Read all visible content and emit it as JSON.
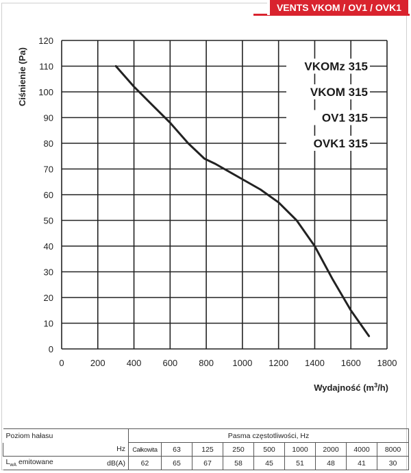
{
  "brand": "VENTS VKOM / OV1 / OVK1",
  "models": [
    "VKOMz 315",
    "VKOM 315",
    "OV1 315",
    "OVK1 315"
  ],
  "chart_data": {
    "type": "line",
    "ylabel": "Ciśnienie (Pa)",
    "xlabel_main": "Wydajność (m",
    "xlabel_sup": "3",
    "xlabel_end": "/h)",
    "xlim": [
      0,
      1800
    ],
    "ylim": [
      0,
      120
    ],
    "xticks": [
      0,
      200,
      400,
      600,
      800,
      1000,
      1200,
      1400,
      1600,
      1800
    ],
    "yticks": [
      0,
      10,
      20,
      30,
      40,
      50,
      60,
      70,
      80,
      90,
      100,
      110,
      120
    ],
    "grid": true,
    "series": [
      {
        "x": [
          300,
          400,
          500,
          600,
          700,
          790,
          850,
          1000,
          1100,
          1200,
          1300,
          1400,
          1500,
          1600,
          1700
        ],
        "y": [
          110,
          102,
          95,
          88,
          80,
          74,
          72,
          66,
          62,
          57,
          50,
          40,
          27,
          15,
          5
        ]
      }
    ]
  },
  "noise": {
    "title": "Poziom hałasu",
    "band_title": "Pasma częstotliwości, Hz",
    "hz_label": "Hz",
    "total_label": "Całkowita",
    "freqs": [
      "63",
      "125",
      "250",
      "500",
      "1000",
      "2000",
      "4000",
      "8000"
    ],
    "row_label_main": "L",
    "row_label_sub": "wA",
    "row_label_end": " emitowane",
    "unit": "dB(A)",
    "total_value": "62",
    "values": [
      "65",
      "67",
      "58",
      "45",
      "51",
      "48",
      "41",
      "30"
    ]
  }
}
